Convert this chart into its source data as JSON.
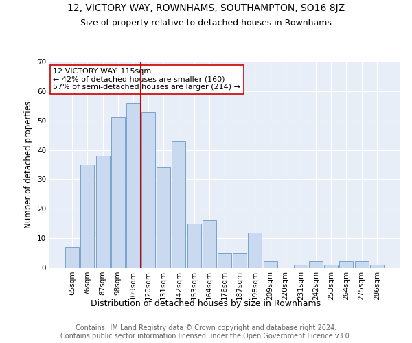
{
  "title": "12, VICTORY WAY, ROWNHAMS, SOUTHAMPTON, SO16 8JZ",
  "subtitle": "Size of property relative to detached houses in Rownhams",
  "xlabel": "Distribution of detached houses by size in Rownhams",
  "ylabel": "Number of detached properties",
  "categories": [
    "65sqm",
    "76sqm",
    "87sqm",
    "98sqm",
    "109sqm",
    "120sqm",
    "131sqm",
    "142sqm",
    "153sqm",
    "164sqm",
    "176sqm",
    "187sqm",
    "198sqm",
    "209sqm",
    "220sqm",
    "231sqm",
    "242sqm",
    "253sqm",
    "264sqm",
    "275sqm",
    "286sqm"
  ],
  "values": [
    7,
    35,
    38,
    51,
    56,
    53,
    34,
    43,
    15,
    16,
    5,
    5,
    12,
    2,
    0,
    1,
    2,
    1,
    2,
    2,
    1
  ],
  "bar_color": "#c9d9f0",
  "bar_edge_color": "#7aa4cc",
  "vline_x": 4.5,
  "vline_color": "#cc0000",
  "annotation_text": "12 VICTORY WAY: 115sqm\n← 42% of detached houses are smaller (160)\n57% of semi-detached houses are larger (214) →",
  "annotation_box_color": "#ffffff",
  "annotation_box_edge": "#cc0000",
  "ylim": [
    0,
    70
  ],
  "yticks": [
    0,
    10,
    20,
    30,
    40,
    50,
    60,
    70
  ],
  "background_color": "#e8eef7",
  "footer": "Contains HM Land Registry data © Crown copyright and database right 2024.\nContains public sector information licensed under the Open Government Licence v3.0.",
  "title_fontsize": 10,
  "subtitle_fontsize": 9,
  "xlabel_fontsize": 9,
  "ylabel_fontsize": 8.5,
  "tick_fontsize": 7.5,
  "footer_fontsize": 7,
  "annotation_fontsize": 8
}
